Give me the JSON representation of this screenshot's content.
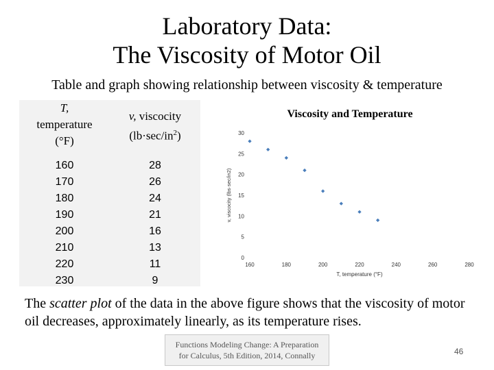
{
  "slide": {
    "title_line1": "Laboratory Data:",
    "title_line2": "The Viscosity of Motor Oil",
    "subtitle": "Table and graph showing relationship between viscosity & temperature",
    "paragraph_pre": "The ",
    "paragraph_em": "scatter plot",
    "paragraph_post": " of the data in the above figure shows that the viscosity of motor oil decreases, approximately linearly, as its temperature rises.",
    "footer_line1": "Functions Modeling Change: A Preparation",
    "footer_line2": "for Calculus, 5th Edition, 2014, Connally",
    "page_number": "46"
  },
  "table": {
    "header_t_symbol": "T,",
    "header_t_word": "temperature",
    "header_t_unit": "(°F)",
    "header_v_symbol": "v,",
    "header_v_word": " viscocity",
    "header_v_unit": "(lb·sec/in",
    "header_v_exp": "2",
    "header_v_close": ")",
    "temperatures": [
      "160",
      "170",
      "180",
      "190",
      "200",
      "210",
      "220",
      "230"
    ],
    "viscosities": [
      "28",
      "26",
      "24",
      "21",
      "16",
      "13",
      "11",
      "9"
    ]
  },
  "chart_data": {
    "type": "scatter",
    "title": "Viscosity and Temperature",
    "xlabel": "T, temperature (°F)",
    "ylabel": "v, viscocity (lbs·sec/in2)",
    "x": [
      160,
      170,
      180,
      190,
      200,
      210,
      220,
      230
    ],
    "y": [
      28,
      26,
      24,
      21,
      16,
      13,
      11,
      9
    ],
    "xlim": [
      160,
      280
    ],
    "ylim": [
      0,
      30
    ],
    "x_ticks": [
      "160",
      "180",
      "200",
      "220",
      "240",
      "260",
      "280"
    ],
    "y_ticks": [
      "0",
      "5",
      "10",
      "15",
      "20",
      "25",
      "30"
    ],
    "marker_color": "#4a7ebb",
    "grid": false,
    "legend": "none"
  }
}
